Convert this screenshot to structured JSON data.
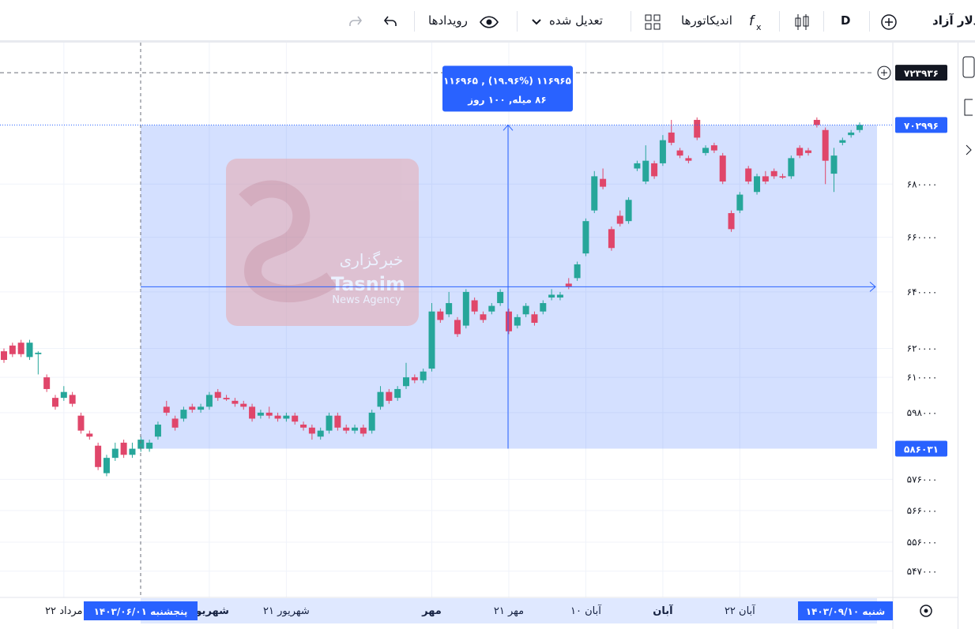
{
  "toolbar": {
    "symbol": "دلار آزاد",
    "interval": "D",
    "indicators": "اندیکاتورها",
    "adjusted": "تعدیل شده",
    "events": "رویدادها"
  },
  "watermark": {
    "line1": "خبرگزاری",
    "line2": "Tasnim",
    "line3": "News Agency"
  },
  "chart_data": {
    "type": "candlestick",
    "log_scale": true,
    "grid": true,
    "up_color": "#26a69a",
    "down_color": "#e0466a",
    "categories": [
      null,
      null,
      null,
      null,
      null,
      null,
      null,
      "۲۲ مرداد",
      null,
      null,
      null,
      null,
      null,
      null,
      null,
      null,
      null,
      null,
      null,
      null,
      null,
      null,
      null,
      null,
      "شهریور",
      null,
      null,
      null,
      null,
      null,
      null,
      null,
      null,
      "۲۱ شهریور",
      null,
      null,
      null,
      null,
      null,
      null,
      null,
      null,
      null,
      null,
      null,
      null,
      null,
      null,
      null,
      null,
      "مهر",
      null,
      null,
      null,
      null,
      null,
      null,
      null,
      null,
      "۲۱ مهر",
      null,
      null,
      null,
      null,
      null,
      null,
      null,
      null,
      "۱۰ آبان",
      null,
      null,
      null,
      null,
      null,
      null,
      null,
      null,
      "آبان",
      null,
      null,
      null,
      null,
      null,
      null,
      null,
      null,
      "۲۲ آبان",
      null,
      null,
      null,
      null,
      null,
      null,
      null,
      null,
      null,
      null,
      null,
      null,
      null,
      null
    ],
    "open": [
      619000,
      621000,
      622000,
      617000,
      618000,
      610000,
      603000,
      603000,
      604000,
      597000,
      591000,
      587000,
      578000,
      583000,
      588000,
      584000,
      586000,
      586000,
      590000,
      600000,
      596000,
      596000,
      600000,
      599000,
      600000,
      605000,
      603000,
      602000,
      601000,
      600000,
      597000,
      598000,
      597000,
      596000,
      597000,
      594000,
      593000,
      590000,
      592000,
      597000,
      593000,
      592000,
      593000,
      592000,
      600000,
      605000,
      603000,
      607000,
      610000,
      609000,
      613000,
      633000,
      632000,
      630000,
      628000,
      637000,
      632000,
      633000,
      636000,
      633000,
      628000,
      632000,
      632000,
      633000,
      638000,
      638000,
      643000,
      645000,
      654000,
      670000,
      682000,
      663000,
      668000,
      666000,
      686000,
      681000,
      688000,
      688000,
      700000,
      693000,
      690000,
      705000,
      692000,
      695000,
      691000,
      669000,
      670000,
      686000,
      677000,
      683000,
      685000,
      683000,
      683000,
      694000,
      693000,
      705000,
      701000,
      684000,
      696000,
      699000,
      701000
    ],
    "high": [
      620000,
      622000,
      623000,
      623000,
      619000,
      611000,
      604000,
      607000,
      605000,
      598000,
      592000,
      588000,
      584000,
      588000,
      589000,
      588000,
      590000,
      589000,
      595000,
      602000,
      597000,
      600000,
      601000,
      601000,
      605000,
      606000,
      604000,
      603000,
      602000,
      601000,
      599000,
      600000,
      598000,
      598000,
      598000,
      595000,
      594000,
      593000,
      598000,
      598000,
      594000,
      594000,
      594000,
      599000,
      607000,
      606000,
      607000,
      615000,
      611000,
      613000,
      636000,
      634000,
      640000,
      631000,
      641000,
      638000,
      633000,
      636000,
      641000,
      634000,
      632000,
      636000,
      633000,
      637000,
      641000,
      640000,
      645000,
      651000,
      667000,
      685000,
      686000,
      664000,
      670000,
      675000,
      689000,
      695000,
      689000,
      699000,
      705000,
      694000,
      691000,
      706000,
      695000,
      696000,
      692000,
      670000,
      677000,
      687000,
      684000,
      685000,
      686000,
      684000,
      691000,
      695000,
      694000,
      706000,
      702000,
      694000,
      698000,
      701000,
      704000
    ],
    "low": [
      615000,
      617000,
      617000,
      616000,
      611000,
      605000,
      599000,
      602000,
      600000,
      591000,
      589000,
      579000,
      577000,
      582000,
      583000,
      583000,
      585000,
      585000,
      589000,
      597000,
      592000,
      595000,
      598000,
      598000,
      599000,
      602000,
      602000,
      600000,
      599000,
      595000,
      596000,
      596000,
      595000,
      595000,
      594000,
      592000,
      589000,
      589000,
      591000,
      592000,
      591000,
      591000,
      590000,
      591000,
      599000,
      601000,
      602000,
      606000,
      608000,
      608000,
      612000,
      629000,
      631000,
      624000,
      627000,
      632000,
      629000,
      632000,
      635000,
      625000,
      627000,
      631000,
      628000,
      632000,
      637000,
      637000,
      641000,
      644000,
      653000,
      669000,
      678000,
      655000,
      664000,
      665000,
      685000,
      680000,
      682000,
      687000,
      695000,
      690000,
      688000,
      697000,
      691000,
      692000,
      680000,
      662000,
      669000,
      680000,
      676000,
      680000,
      682000,
      682000,
      682000,
      690000,
      691000,
      702000,
      680000,
      677000,
      695000,
      698000,
      700000
    ],
    "close": [
      616000,
      618000,
      618000,
      622000,
      618500,
      606000,
      600000,
      605000,
      601000,
      592000,
      590000,
      580000,
      583000,
      586000,
      584000,
      586000,
      589000,
      588000,
      594000,
      598000,
      593000,
      599000,
      599000,
      600000,
      604000,
      603000,
      602500,
      601000,
      600000,
      596000,
      598000,
      597000,
      596000,
      597000,
      595000,
      593000,
      591000,
      592000,
      597000,
      593000,
      592000,
      593000,
      591000,
      598000,
      605000,
      602000,
      606000,
      610000,
      609000,
      612000,
      633000,
      630000,
      636000,
      625000,
      640000,
      633000,
      630000,
      635000,
      640000,
      626000,
      631000,
      635000,
      629000,
      636000,
      639000,
      639000,
      642000,
      650000,
      666000,
      683000,
      679000,
      656000,
      665000,
      674000,
      688000,
      689000,
      683000,
      697000,
      696000,
      691000,
      689000,
      698000,
      694000,
      693000,
      681000,
      663000,
      676000,
      681000,
      683000,
      681000,
      683000,
      682500,
      690000,
      691000,
      692000,
      703000,
      689000,
      691000,
      697000,
      700000,
      703000
    ],
    "ylim": [
      539000,
      735000
    ],
    "yticks": [
      {
        "value": 680000,
        "label": "۶۸۰۰۰۰"
      },
      {
        "value": 660000,
        "label": "۶۶۰۰۰۰"
      },
      {
        "value": 640000,
        "label": "۶۴۰۰۰۰"
      },
      {
        "value": 620000,
        "label": "۶۲۰۰۰۰"
      },
      {
        "value": 610000,
        "label": "۶۱۰۰۰۰"
      },
      {
        "value": 598000,
        "label": "۵۹۸۰۰۰"
      },
      {
        "value": 576000,
        "label": "۵۷۶۰۰۰"
      },
      {
        "value": 566000,
        "label": "۵۶۶۰۰۰"
      },
      {
        "value": 556000,
        "label": "۵۵۶۰۰۰"
      },
      {
        "value": 547000,
        "label": "۵۴۷۰۰۰"
      }
    ],
    "price_labels": [
      {
        "value": 723936,
        "label": "۷۲۳۹۳۶"
      },
      {
        "value": 702996,
        "label": "۷۰۲۹۹۶"
      },
      {
        "value": 586031,
        "label": "۵۸۶۰۳۱"
      }
    ],
    "range_start_label": "پنجشنبه ۱۴۰۳/۰۶/۰۱",
    "range_end_label": "شنبه ۱۴۰۳/۰۹/۱۰",
    "measure_line1": "۱۱۶۹۶۵ (۱۹.۹۶%) , ۱۱۶۹۶۵",
    "measure_line2": "۸۶ میله, ۱۰۰ روز"
  }
}
